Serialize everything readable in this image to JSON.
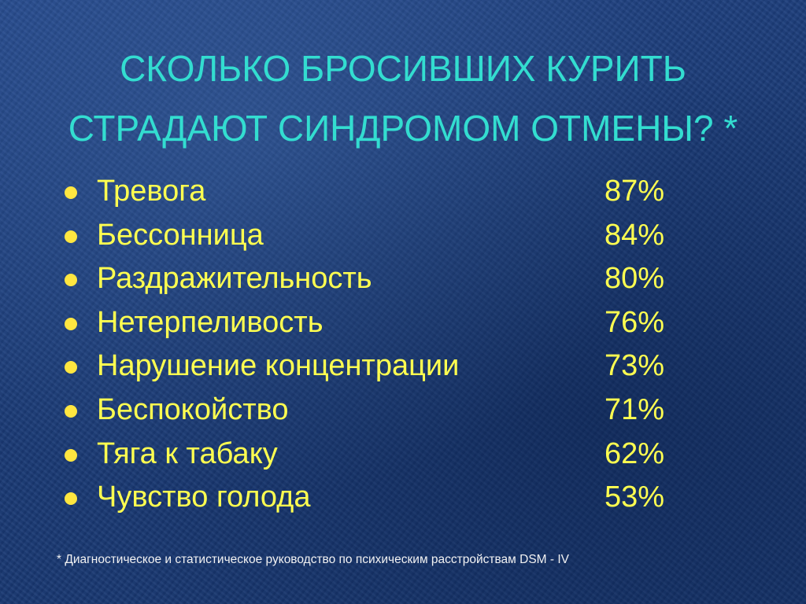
{
  "slide": {
    "title_line1": "СКОЛЬКО БРОСИВШИХ КУРИТЬ",
    "title_line2": "СТРАДАЮТ СИНДРОМОМ ОТМЕНЫ? *",
    "items": [
      {
        "label": "Тревога",
        "value": "87%"
      },
      {
        "label": "Бессонница",
        "value": "84%"
      },
      {
        "label": "Раздражительность",
        "value": "80%"
      },
      {
        "label": "Нетерпеливость",
        "value": "76%"
      },
      {
        "label": "Нарушение концентрации",
        "value": "73%"
      },
      {
        "label": "Беспокойство",
        "value": "71%"
      },
      {
        "label": "Тяга к табаку",
        "value": "62%"
      },
      {
        "label": "Чувство голода",
        "value": "53%"
      }
    ],
    "footnote": "* Диагностическое и статистическое руководство по психическим расстройствам DSM - IV"
  },
  "colors": {
    "title": "#33ddd0",
    "text": "#ffff50",
    "bullet": "#ffe640",
    "footnote": "#f2f2f2",
    "background": "#1c3d78"
  }
}
